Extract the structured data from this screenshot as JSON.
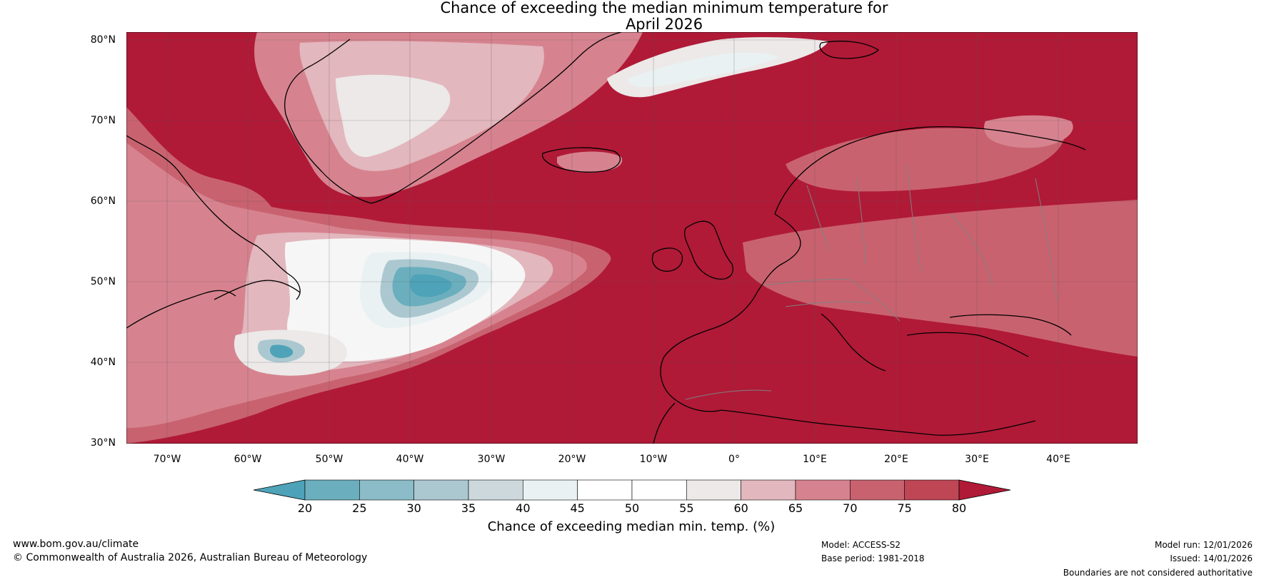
{
  "title": {
    "line1": "Chance of exceeding the median minimum temperature for",
    "line2": "April 2026"
  },
  "map": {
    "lat_labels": [
      "80°N",
      "70°N",
      "60°N",
      "50°N",
      "40°N",
      "30°N"
    ],
    "lon_labels": [
      "70°W",
      "60°W",
      "50°W",
      "40°W",
      "30°W",
      "20°W",
      "10°W",
      "0°",
      "10°E",
      "20°E",
      "30°E",
      "40°E"
    ],
    "colors": {
      "above_80": "#b01a37",
      "land_outline": "#000000",
      "border": "#808080"
    }
  },
  "colorbar": {
    "ticks": [
      "20",
      "25",
      "30",
      "35",
      "40",
      "45",
      "50",
      "55",
      "60",
      "65",
      "70",
      "75",
      "80"
    ],
    "colors": [
      "#4ea3b8",
      "#6bafbe",
      "#8bbcc8",
      "#abc8d0",
      "#ccd8dc",
      "#e9f1f3",
      "#ffffff",
      "#ffffff",
      "#ece9e8",
      "#e2b7bd",
      "#d6838f",
      "#c9626f",
      "#bf4655",
      "#b01a37"
    ],
    "label": "Chance of exceeding median min. temp. (%)"
  },
  "footer": {
    "website": "www.bom.gov.au/climate",
    "copyright": "© Commonwealth of Australia 2026, Australian Bureau of Meteorology",
    "model": "Model: ACCESS-S2",
    "base_period": "Base period: 1981-2018",
    "model_run": "Model run: 12/01/2026",
    "issued": "Issued: 14/01/2026",
    "disclaimer": "Boundaries are not considered authoritative"
  }
}
